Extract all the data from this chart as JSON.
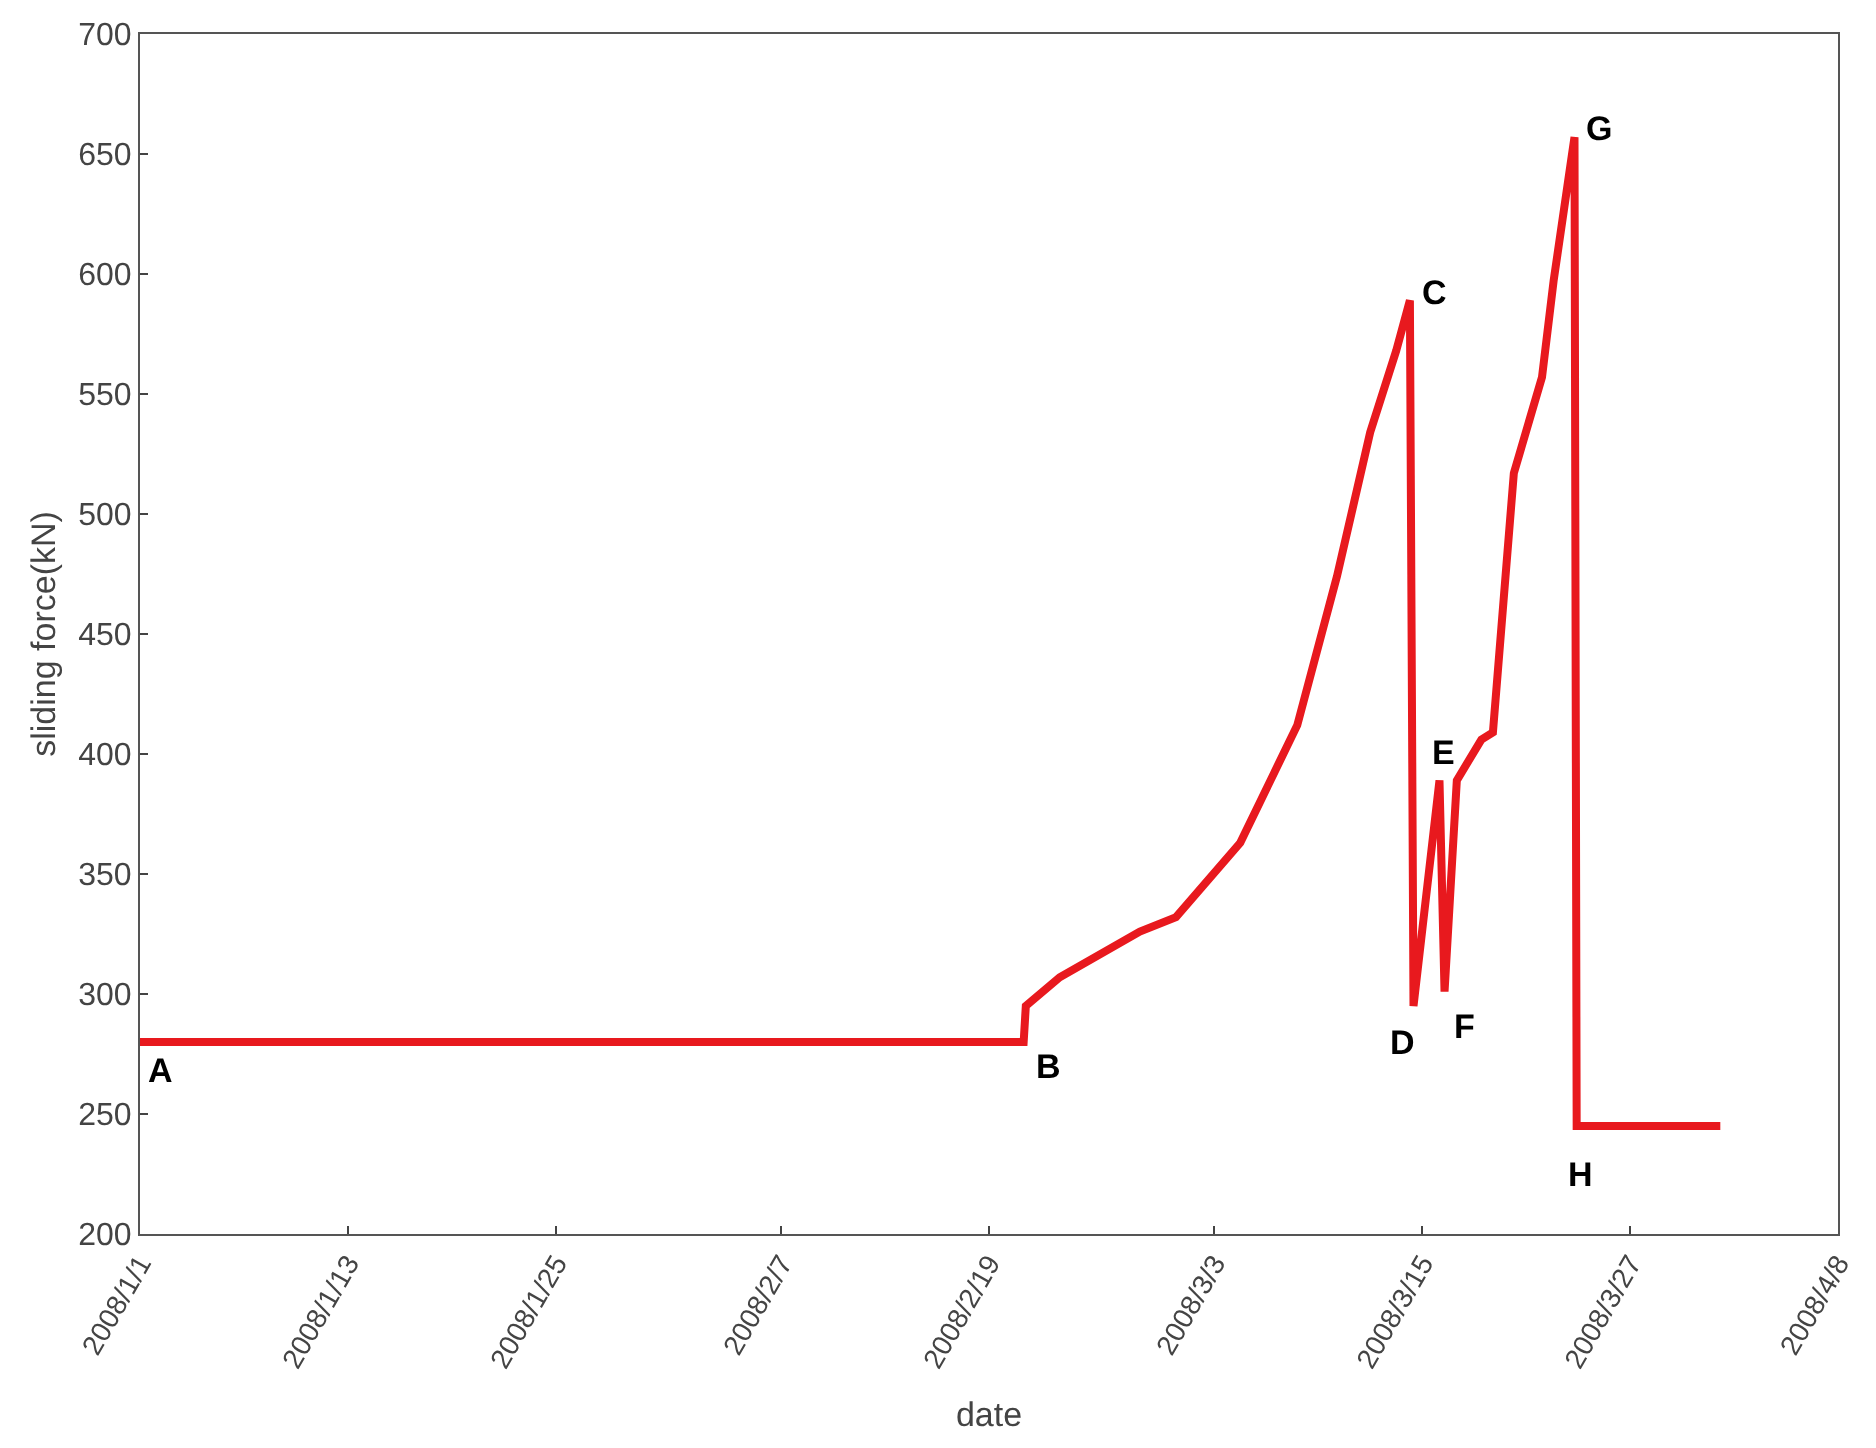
{
  "chart_data": {
    "type": "line",
    "xlabel": "date",
    "ylabel": "sliding force(kN)",
    "x": [
      "2008-01-01",
      "2008-02-21",
      "2008-02-21T03:00",
      "2008-02-23T02:00",
      "2008-02-27T17:00",
      "2008-02-29T19:00",
      "2008-03-04T12:00",
      "2008-03-07T19:00",
      "2008-03-10T02:00",
      "2008-03-12",
      "2008-03-13T12:00",
      "2008-03-14T07:00",
      "2008-03-14T12:00",
      "2008-03-16",
      "2008-03-16T07:00",
      "2008-03-17",
      "2008-03-18T10:00",
      "2008-03-19T02:00",
      "2008-03-20T07:00",
      "2008-03-21T22:00",
      "2008-03-22T14:00",
      "2008-03-23T19:00",
      "2008-03-23T22:00",
      "2008-04-01T05:00"
    ],
    "series": [
      {
        "color": "#e8191e",
        "values": [
          280,
          280,
          295,
          307,
          326,
          332,
          363,
          412,
          474,
          534,
          568,
          589,
          295,
          389,
          301,
          389,
          406,
          409,
          517,
          557,
          597,
          657,
          245,
          245
        ]
      }
    ],
    "xlim": [
      "2008-01-01",
      "2008-04-08"
    ],
    "xticks": [
      {
        "value": "2008-01-01",
        "label": "2008/1/1"
      },
      {
        "value": "2008-01-13",
        "label": "2008/1/13"
      },
      {
        "value": "2008-01-25",
        "label": "2008/1/25"
      },
      {
        "value": "2008-02-07",
        "label": "2008/2/7"
      },
      {
        "value": "2008-02-19",
        "label": "2008/2/19"
      },
      {
        "value": "2008-03-03",
        "label": "2008/3/3"
      },
      {
        "value": "2008-03-15",
        "label": "2008/3/15"
      },
      {
        "value": "2008-03-27",
        "label": "2008/3/27"
      },
      {
        "value": "2008-04-08",
        "label": "2008/4/8"
      }
    ],
    "ylim": [
      200,
      700
    ],
    "yticks": [
      200,
      250,
      300,
      350,
      400,
      450,
      500,
      550,
      600,
      650,
      700
    ],
    "grid": false,
    "marker": "none",
    "line_style": "solid",
    "annotations": [
      {
        "text": "A",
        "x": "2008-01-01",
        "y": 280
      },
      {
        "text": "B",
        "x": "2008-02-21",
        "y": 280
      },
      {
        "text": "C",
        "x": "2008-03-14T07:00",
        "y": 589
      },
      {
        "text": "D",
        "x": "2008-03-14T12:00",
        "y": 295
      },
      {
        "text": "E",
        "x": "2008-03-16",
        "y": 389
      },
      {
        "text": "F",
        "x": "2008-03-16T07:00",
        "y": 301
      },
      {
        "text": "G",
        "x": "2008-03-23T19:00",
        "y": 657
      },
      {
        "text": "H",
        "x": "2008-03-23T22:00",
        "y": 245
      }
    ]
  }
}
